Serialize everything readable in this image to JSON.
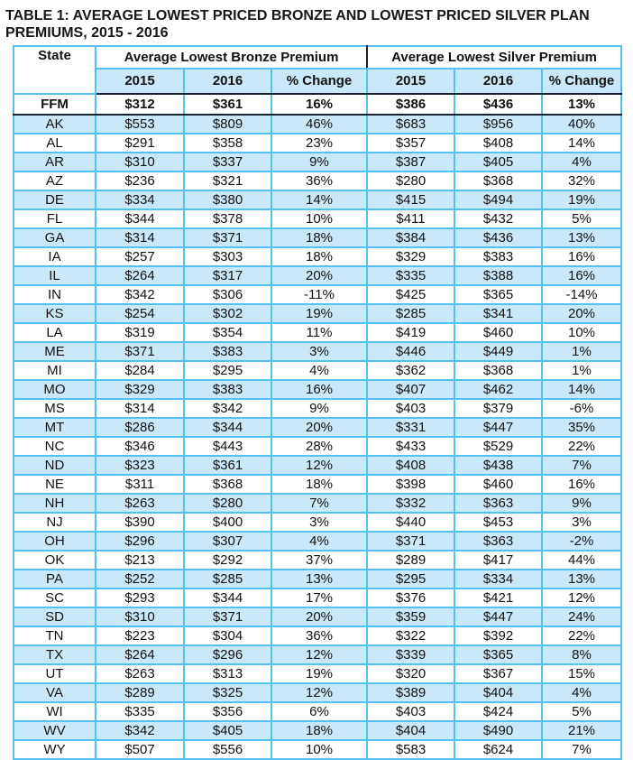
{
  "title": "TABLE 1: AVERAGE LOWEST PRICED BRONZE AND LOWEST PRICED SILVER PLAN PREMIUMS, 2015 - 2016",
  "colors": {
    "stripe-bg": "#c9e9fb",
    "grid-border": "#54c2f0",
    "outer-border": "#18222f"
  },
  "table": {
    "state_header": "State",
    "group_headers": {
      "bronze": "Average Lowest Bronze Premium",
      "silver": "Average Lowest Silver Premium"
    },
    "sub_headers": [
      "2015",
      "2016",
      "% Change",
      "2015",
      "2016",
      "% Change"
    ],
    "rows": [
      [
        "FFM",
        "$312",
        "$361",
        "16%",
        "$386",
        "$436",
        "13%"
      ],
      [
        "AK",
        "$553",
        "$809",
        "46%",
        "$683",
        "$956",
        "40%"
      ],
      [
        "AL",
        "$291",
        "$358",
        "23%",
        "$357",
        "$408",
        "14%"
      ],
      [
        "AR",
        "$310",
        "$337",
        "9%",
        "$387",
        "$405",
        "4%"
      ],
      [
        "AZ",
        "$236",
        "$321",
        "36%",
        "$280",
        "$368",
        "32%"
      ],
      [
        "DE",
        "$334",
        "$380",
        "14%",
        "$415",
        "$494",
        "19%"
      ],
      [
        "FL",
        "$344",
        "$378",
        "10%",
        "$411",
        "$432",
        "5%"
      ],
      [
        "GA",
        "$314",
        "$371",
        "18%",
        "$384",
        "$436",
        "13%"
      ],
      [
        "IA",
        "$257",
        "$303",
        "18%",
        "$329",
        "$383",
        "16%"
      ],
      [
        "IL",
        "$264",
        "$317",
        "20%",
        "$335",
        "$388",
        "16%"
      ],
      [
        "IN",
        "$342",
        "$306",
        "-11%",
        "$425",
        "$365",
        "-14%"
      ],
      [
        "KS",
        "$254",
        "$302",
        "19%",
        "$285",
        "$341",
        "20%"
      ],
      [
        "LA",
        "$319",
        "$354",
        "11%",
        "$419",
        "$460",
        "10%"
      ],
      [
        "ME",
        "$371",
        "$383",
        "3%",
        "$446",
        "$449",
        "1%"
      ],
      [
        "MI",
        "$284",
        "$295",
        "4%",
        "$362",
        "$368",
        "1%"
      ],
      [
        "MO",
        "$329",
        "$383",
        "16%",
        "$407",
        "$462",
        "14%"
      ],
      [
        "MS",
        "$314",
        "$342",
        "9%",
        "$403",
        "$379",
        "-6%"
      ],
      [
        "MT",
        "$286",
        "$344",
        "20%",
        "$331",
        "$447",
        "35%"
      ],
      [
        "NC",
        "$346",
        "$443",
        "28%",
        "$433",
        "$529",
        "22%"
      ],
      [
        "ND",
        "$323",
        "$361",
        "12%",
        "$408",
        "$438",
        "7%"
      ],
      [
        "NE",
        "$311",
        "$368",
        "18%",
        "$398",
        "$460",
        "16%"
      ],
      [
        "NH",
        "$263",
        "$280",
        "7%",
        "$332",
        "$363",
        "9%"
      ],
      [
        "NJ",
        "$390",
        "$400",
        "3%",
        "$440",
        "$453",
        "3%"
      ],
      [
        "OH",
        "$296",
        "$307",
        "4%",
        "$371",
        "$363",
        "-2%"
      ],
      [
        "OK",
        "$213",
        "$292",
        "37%",
        "$289",
        "$417",
        "44%"
      ],
      [
        "PA",
        "$252",
        "$285",
        "13%",
        "$295",
        "$334",
        "13%"
      ],
      [
        "SC",
        "$293",
        "$344",
        "17%",
        "$376",
        "$421",
        "12%"
      ],
      [
        "SD",
        "$310",
        "$371",
        "20%",
        "$359",
        "$447",
        "24%"
      ],
      [
        "TN",
        "$223",
        "$304",
        "36%",
        "$322",
        "$392",
        "22%"
      ],
      [
        "TX",
        "$264",
        "$296",
        "12%",
        "$339",
        "$365",
        "8%"
      ],
      [
        "UT",
        "$263",
        "$313",
        "19%",
        "$320",
        "$367",
        "15%"
      ],
      [
        "VA",
        "$289",
        "$325",
        "12%",
        "$389",
        "$404",
        "4%"
      ],
      [
        "WI",
        "$335",
        "$356",
        "6%",
        "$403",
        "$424",
        "5%"
      ],
      [
        "WV",
        "$342",
        "$405",
        "18%",
        "$404",
        "$490",
        "21%"
      ],
      [
        "WY",
        "$507",
        "$556",
        "10%",
        "$583",
        "$624",
        "7%"
      ]
    ]
  }
}
